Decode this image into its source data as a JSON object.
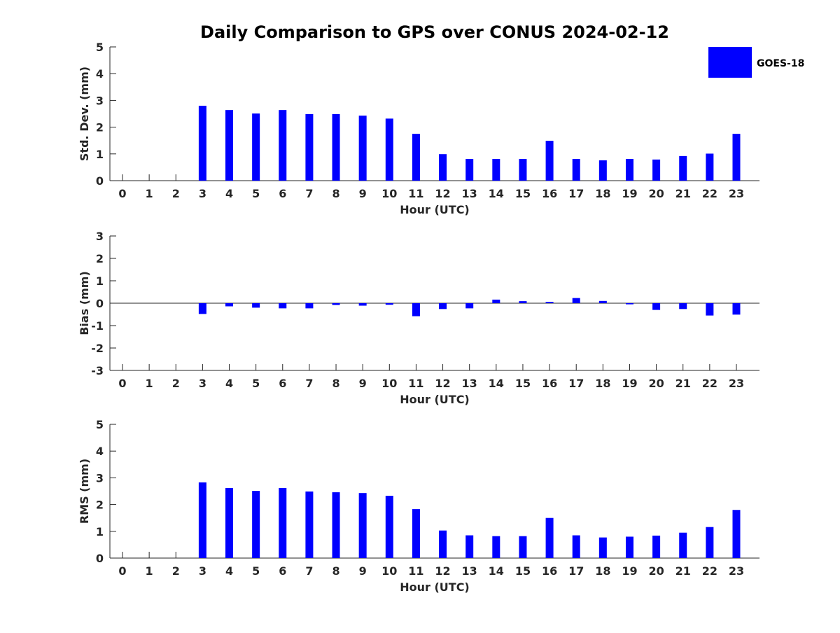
{
  "chart_data": {
    "title": "Daily Comparison to GPS over CONUS 2024-02-12",
    "legend": {
      "label": "GOES-18",
      "color": "#0000ff",
      "position": "top-right"
    },
    "bar_color": "#0000ff",
    "panels": [
      {
        "type": "bar",
        "xlabel": "Hour (UTC)",
        "ylabel": "Std. Dev. (mm)",
        "ylim": [
          0,
          5
        ],
        "yticks": [
          0,
          1,
          2,
          3,
          4,
          5
        ],
        "yticklabels": [
          "0",
          "1",
          "2",
          "3",
          "4",
          "5"
        ],
        "categories": [
          "0",
          "1",
          "2",
          "3",
          "4",
          "5",
          "6",
          "7",
          "8",
          "9",
          "10",
          "11",
          "12",
          "13",
          "14",
          "15",
          "16",
          "17",
          "18",
          "19",
          "20",
          "21",
          "22",
          "23"
        ],
        "values": [
          null,
          null,
          null,
          2.8,
          2.64,
          2.51,
          2.64,
          2.49,
          2.49,
          2.43,
          2.32,
          1.75,
          0.99,
          0.81,
          0.81,
          0.81,
          1.49,
          0.81,
          0.76,
          0.81,
          0.79,
          0.92,
          1.01,
          1.75
        ]
      },
      {
        "type": "bar",
        "xlabel": "Hour (UTC)",
        "ylabel": "Bias (mm)",
        "ylim": [
          -3,
          3
        ],
        "yticks": [
          -3,
          -2,
          -1,
          0,
          1,
          2,
          3
        ],
        "yticklabels": [
          "-3",
          "-2",
          "-1",
          "0",
          "1",
          "2",
          "3"
        ],
        "categories": [
          "0",
          "1",
          "2",
          "3",
          "4",
          "5",
          "6",
          "7",
          "8",
          "9",
          "10",
          "11",
          "12",
          "13",
          "14",
          "15",
          "16",
          "17",
          "18",
          "19",
          "20",
          "21",
          "22",
          "23"
        ],
        "values": [
          null,
          null,
          null,
          -0.48,
          -0.14,
          -0.2,
          -0.23,
          -0.23,
          -0.08,
          -0.11,
          -0.07,
          -0.58,
          -0.26,
          -0.23,
          0.16,
          0.09,
          0.06,
          0.23,
          0.1,
          -0.05,
          -0.3,
          -0.26,
          -0.55,
          -0.51
        ]
      },
      {
        "type": "bar",
        "xlabel": "Hour (UTC)",
        "ylabel": "RMS (mm)",
        "ylim": [
          0,
          5
        ],
        "yticks": [
          0,
          1,
          2,
          3,
          4,
          5
        ],
        "yticklabels": [
          "0",
          "1",
          "2",
          "3",
          "4",
          "5"
        ],
        "categories": [
          "0",
          "1",
          "2",
          "3",
          "4",
          "5",
          "6",
          "7",
          "8",
          "9",
          "10",
          "11",
          "12",
          "13",
          "14",
          "15",
          "16",
          "17",
          "18",
          "19",
          "20",
          "21",
          "22",
          "23"
        ],
        "values": [
          null,
          null,
          null,
          2.83,
          2.62,
          2.51,
          2.62,
          2.49,
          2.46,
          2.43,
          2.33,
          1.83,
          1.03,
          0.85,
          0.82,
          0.82,
          1.5,
          0.85,
          0.77,
          0.8,
          0.84,
          0.95,
          1.16,
          1.8
        ]
      }
    ]
  }
}
